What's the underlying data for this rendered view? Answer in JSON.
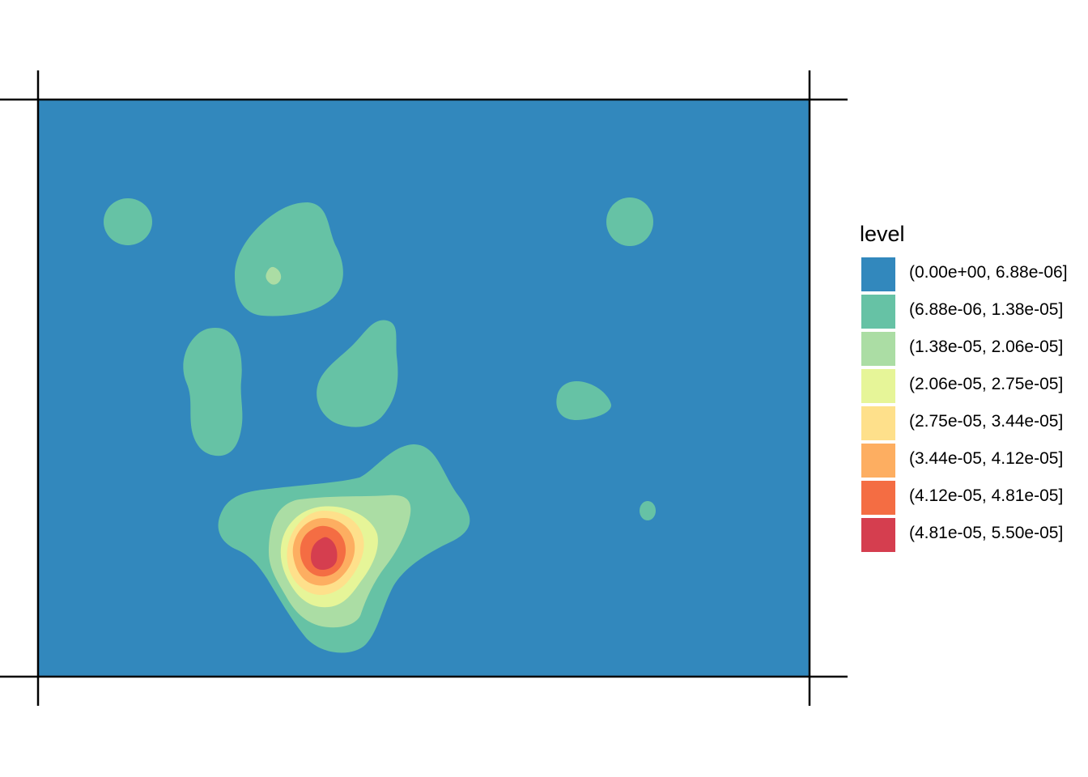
{
  "chart_data": {
    "type": "heatmap",
    "subtype": "filled-contour (kernel density)",
    "title": "",
    "xlabel": "",
    "ylabel": "",
    "axis_ticks_labels_shown": false,
    "grid": false,
    "legend": {
      "title": "level",
      "position": "right",
      "items": [
        {
          "label": "(0.00e+00, 6.88e-06]",
          "color": "#3288BD",
          "lower": 0.0,
          "upper": 6.88e-06
        },
        {
          "label": "(6.88e-06, 1.38e-05]",
          "color": "#66C2A5",
          "lower": 6.88e-06,
          "upper": 1.38e-05
        },
        {
          "label": "(1.38e-05, 2.06e-05]",
          "color": "#ABDDA4",
          "lower": 1.38e-05,
          "upper": 2.06e-05
        },
        {
          "label": "(2.06e-05, 2.75e-05]",
          "color": "#E6F598",
          "lower": 2.06e-05,
          "upper": 2.75e-05
        },
        {
          "label": "(2.75e-05, 3.44e-05]",
          "color": "#FEE08B",
          "lower": 2.75e-05,
          "upper": 3.44e-05
        },
        {
          "label": "(3.44e-05, 4.12e-05]",
          "color": "#FDAE61",
          "lower": 3.44e-05,
          "upper": 4.12e-05
        },
        {
          "label": "(4.12e-05, 4.81e-05]",
          "color": "#F46D43",
          "lower": 4.12e-05,
          "upper": 4.81e-05
        },
        {
          "label": "(4.81e-05, 5.50e-05]",
          "color": "#D53E4F",
          "lower": 4.81e-05,
          "upper": 5.5e-05
        }
      ]
    },
    "level_range": [
      0.0,
      5.5e-05
    ],
    "peak": {
      "level_class": "(4.81e-05, 5.50e-05]",
      "description": "single density maximum in lower-left-center of the frame"
    }
  }
}
